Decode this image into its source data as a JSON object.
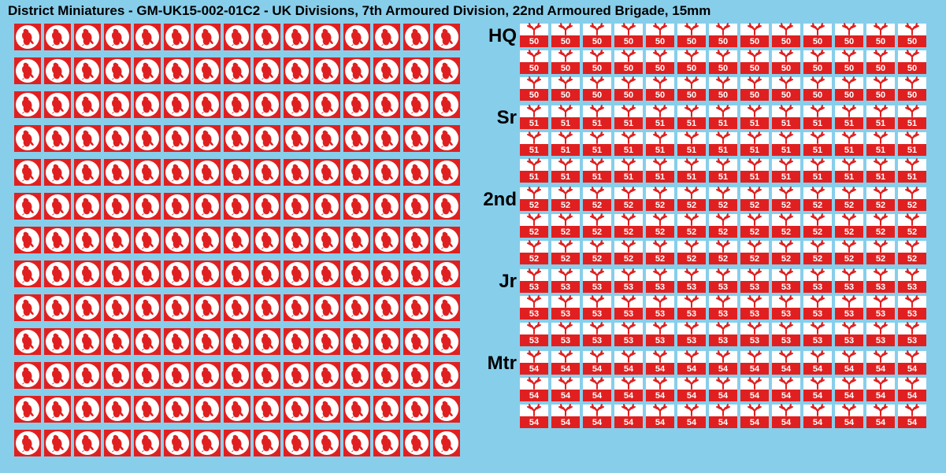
{
  "title": "District Miniatures - GM-UK15-002-01C2 - UK Divisions, 7th Armoured Division, 22nd Armoured Brigade, 15mm",
  "colors": {
    "background": "#87ceeb",
    "red": "#e02020",
    "white": "#ffffff",
    "text": "#000000"
  },
  "left_grid": {
    "rows": 13,
    "cols": 15,
    "icon": "desert-rat-jerboa",
    "cell_size": 34,
    "icon_color": "#e02020",
    "circle_color": "#ffffff",
    "square_color": "#e02020"
  },
  "right_groups": [
    {
      "label": "HQ",
      "number": "50",
      "rows": 3,
      "cols": 13
    },
    {
      "label": "Sr",
      "number": "51",
      "rows": 3,
      "cols": 13
    },
    {
      "label": "2nd",
      "number": "52",
      "rows": 3,
      "cols": 13
    },
    {
      "label": "Jr",
      "number": "53",
      "rows": 3,
      "cols": 13
    },
    {
      "label": "Mtr",
      "number": "54",
      "rows": 3,
      "cols": 13
    }
  ],
  "badge_style": {
    "width": 36,
    "height": 30,
    "top_color": "#ffffff",
    "bottom_color": "#e02020",
    "antler_color": "#e02020",
    "number_color": "#ffffff",
    "number_fontsize": 11
  },
  "label_style": {
    "fontsize": 24,
    "fontweight": "bold",
    "color": "#000000"
  },
  "title_style": {
    "fontsize": 17,
    "fontweight": "bold",
    "color": "#000000"
  }
}
